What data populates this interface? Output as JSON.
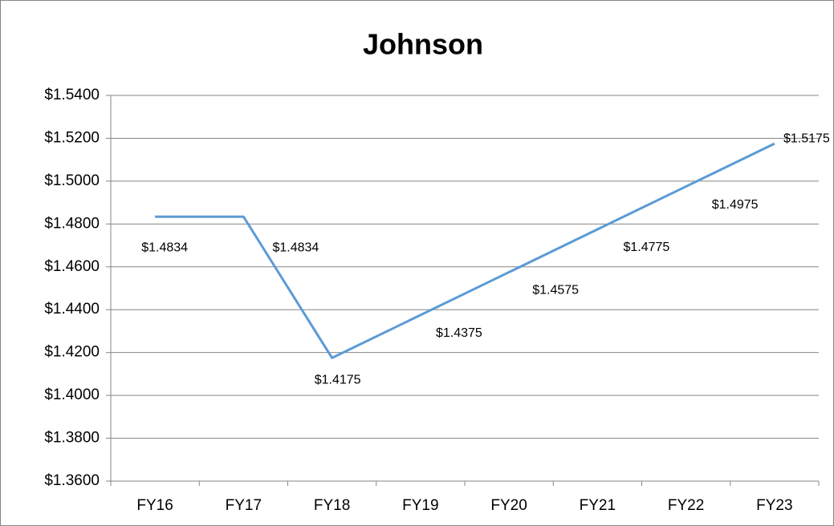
{
  "chart_data": {
    "type": "line",
    "title": "Johnson",
    "categories": [
      "FY16",
      "FY17",
      "FY18",
      "FY19",
      "FY20",
      "FY21",
      "FY22",
      "FY23"
    ],
    "values": [
      1.4834,
      1.4834,
      1.4175,
      1.4375,
      1.4575,
      1.4775,
      1.4975,
      1.5175
    ],
    "value_labels": [
      "$1.4834",
      "$1.4834",
      "$1.4175",
      "$1.4375",
      "$1.4575",
      "$1.4775",
      "$1.4975",
      "$1.5175"
    ],
    "color": "#5b9bd5",
    "ylim": [
      1.36,
      1.54
    ],
    "yticks": [
      {
        "value": 1.36,
        "label": "$1.3600"
      },
      {
        "value": 1.38,
        "label": "$1.3800"
      },
      {
        "value": 1.4,
        "label": "$1.4000"
      },
      {
        "value": 1.42,
        "label": "$1.4200"
      },
      {
        "value": 1.44,
        "label": "$1.4400"
      },
      {
        "value": 1.46,
        "label": "$1.4600"
      },
      {
        "value": 1.48,
        "label": "$1.4800"
      },
      {
        "value": 1.5,
        "label": "$1.5000"
      },
      {
        "value": 1.52,
        "label": "$1.5200"
      },
      {
        "value": 1.54,
        "label": "$1.5400"
      }
    ],
    "grid": true
  }
}
